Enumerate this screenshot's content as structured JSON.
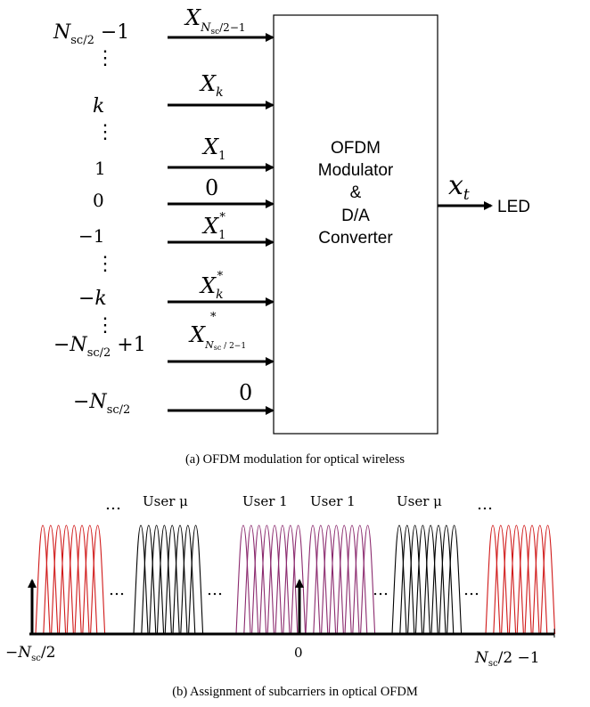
{
  "top_diagram": {
    "input_labels": [
      {
        "main": "N",
        "sub": "sc/2",
        "tail": " −1"
      },
      {
        "main": "k"
      },
      {
        "main": "1"
      },
      {
        "main": "0"
      },
      {
        "main": "−1"
      },
      {
        "main": "−k"
      },
      {
        "main": "−N",
        "sub": "sc/2",
        "tail": " +1"
      },
      {
        "main": "−N",
        "sub": "sc/2"
      }
    ],
    "arrow_symbols": [
      {
        "main": "X",
        "sub": "N",
        "subsub": "sc",
        "subtail": "/2−1"
      },
      {
        "main": "X",
        "sub": "k"
      },
      {
        "main": "X",
        "sub": "1"
      },
      {
        "main": "0"
      },
      {
        "main": "X",
        "sub": "1",
        "sup": "*"
      },
      {
        "main": "X",
        "sub": "k",
        "sup": "*"
      },
      {
        "main": "X",
        "sub": "N",
        "subsub": "sc",
        "subtail": " / 2−1",
        "sup": "*"
      },
      {
        "main": "0"
      }
    ],
    "block_lines": [
      "OFDM",
      "Modulator",
      "&",
      "D/A",
      "Converter"
    ],
    "output_symbol": {
      "main": "x",
      "sub": "t"
    },
    "output_label": "LED",
    "caption": "(a) OFDM modulation for optical wireless"
  },
  "bottom_diagram": {
    "ellipsis": "…",
    "groups": [
      {
        "label": "",
        "color": "#d01818"
      },
      {
        "label": "User μ",
        "color": "#000000"
      },
      {
        "label": "User 1",
        "color": "#8b2a6e"
      },
      {
        "label": "User 1",
        "color": "#8b2a6e"
      },
      {
        "label": "User μ",
        "color": "#000000"
      },
      {
        "label": "",
        "color": "#d01818"
      }
    ],
    "axis_left_label": {
      "pre": "−",
      "main": "N",
      "sub": "sc",
      "tail": "/2"
    },
    "axis_mid_label": "0",
    "axis_right_label": {
      "main": "N",
      "sub": "sc",
      "tail": "/2 −1"
    },
    "caption": "(b) Assignment of subcarriers in optical OFDM"
  }
}
